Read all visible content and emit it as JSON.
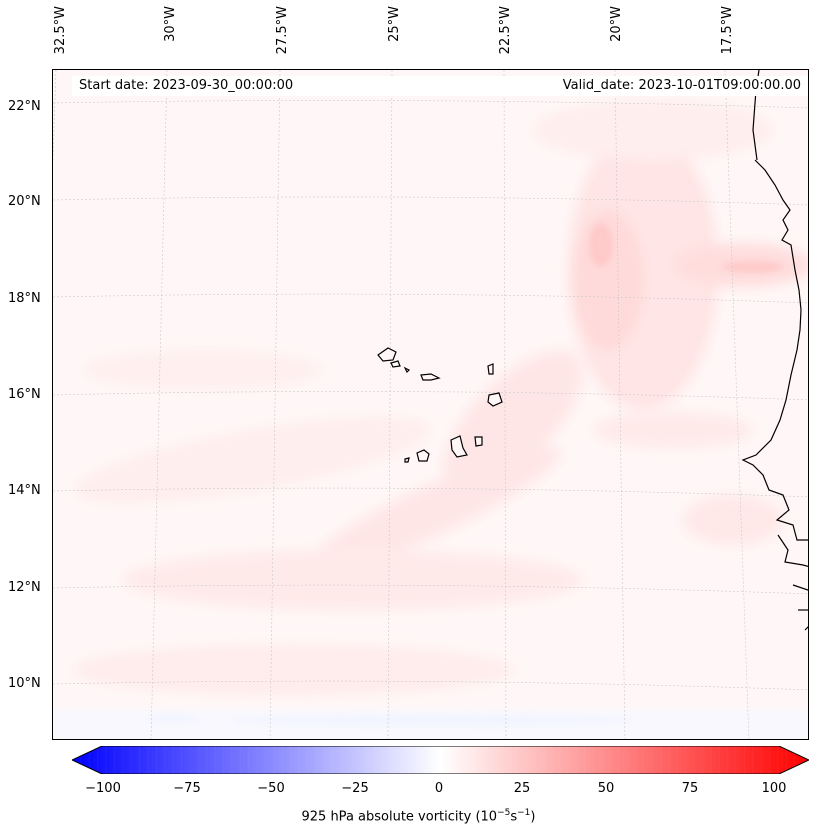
{
  "map": {
    "start_date_text": "Start date: 2023-09-30_00:00:00",
    "valid_date_text": "Valid_date: 2023-10-01T09:00:00.00",
    "longitude_labels": [
      "32.5°W",
      "30°W",
      "27.5°W",
      "25°W",
      "22.5°W",
      "20°W",
      "17.5°W"
    ],
    "latitude_labels": [
      "22°N",
      "20°N",
      "18°N",
      "16°N",
      "14°N",
      "12°N",
      "10°N"
    ],
    "field": "925 hPa absolute vorticity"
  },
  "colorbar": {
    "ticks": [
      "−100",
      "−75",
      "−50",
      "−25",
      "0",
      "25",
      "50",
      "75",
      "100"
    ],
    "label_main": "925 hPa absolute vorticity (10",
    "label_exp1": "−5",
    "label_mid": "s",
    "label_exp2": "−1",
    "label_end": ")",
    "min_color": "#0000ff",
    "mid_color": "#ffffff",
    "max_color": "#ff0000"
  }
}
